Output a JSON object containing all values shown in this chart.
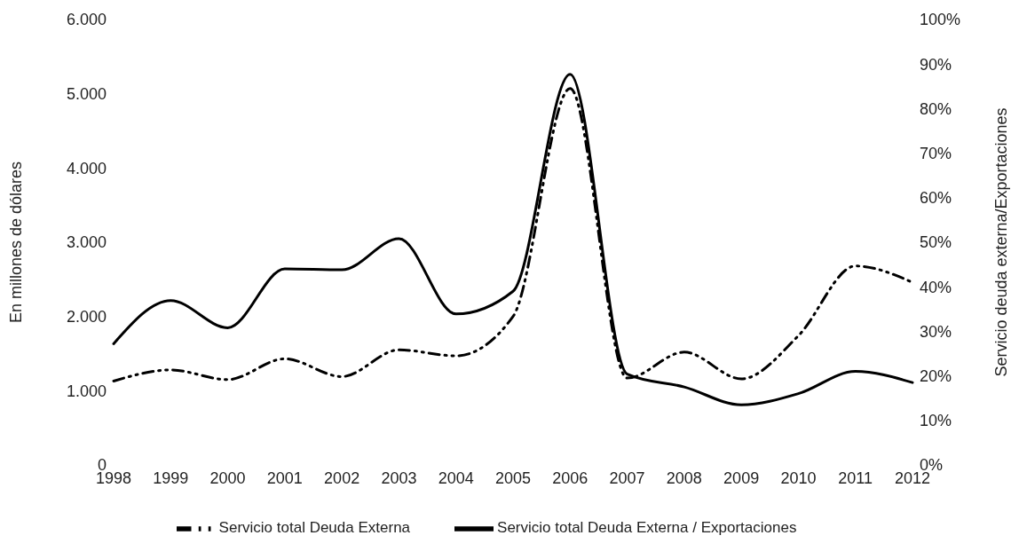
{
  "chart_data": {
    "type": "line",
    "categories": [
      "1998",
      "1999",
      "2000",
      "2001",
      "2002",
      "2003",
      "2004",
      "2005",
      "2006",
      "2007",
      "2008",
      "2009",
      "2010",
      "2011",
      "2012"
    ],
    "series": [
      {
        "name": "Servicio total Deuda Externa",
        "color": "#000000",
        "line_style": "dashed",
        "values": [
          1130,
          1280,
          1150,
          1430,
          1190,
          1550,
          1470,
          2000,
          5070,
          1170,
          1520,
          1160,
          1740,
          2680,
          2460
        ]
      },
      {
        "name": "Servicio total Deuda Externa / Exportaciones",
        "color": "#000000",
        "line_style": "solid",
        "axis": "y2",
        "values": [
          27.2,
          36.9,
          30.8,
          44,
          43.8,
          50.8,
          33.9,
          39,
          87.7,
          20.4,
          17.5,
          13.5,
          16,
          21,
          18.5
        ]
      }
    ],
    "ylabel": "En millones de dólares",
    "y2label": "Servicio deuda externa/Exportaciones",
    "ylim": [
      0,
      6000
    ],
    "yticks": [
      {
        "value": 0,
        "label": "0"
      },
      {
        "value": 1000,
        "label": "1.000"
      },
      {
        "value": 2000,
        "label": "2.000"
      },
      {
        "value": 3000,
        "label": "3.000"
      },
      {
        "value": 4000,
        "label": "4.000"
      },
      {
        "value": 5000,
        "label": "5.000"
      },
      {
        "value": 6000,
        "label": "6.000"
      }
    ],
    "y2lim": [
      0,
      100
    ],
    "y2ticks": [
      {
        "value": 0,
        "label": "0%"
      },
      {
        "value": 10,
        "label": "10%"
      },
      {
        "value": 20,
        "label": "20%"
      },
      {
        "value": 30,
        "label": "30%"
      },
      {
        "value": 40,
        "label": "40%"
      },
      {
        "value": 50,
        "label": "50%"
      },
      {
        "value": 60,
        "label": "60%"
      },
      {
        "value": 70,
        "label": "70%"
      },
      {
        "value": 80,
        "label": "80%"
      },
      {
        "value": 90,
        "label": "90%"
      },
      {
        "value": 100,
        "label": "100%"
      }
    ],
    "grid": false,
    "legend": "bottom",
    "marker": "none"
  }
}
